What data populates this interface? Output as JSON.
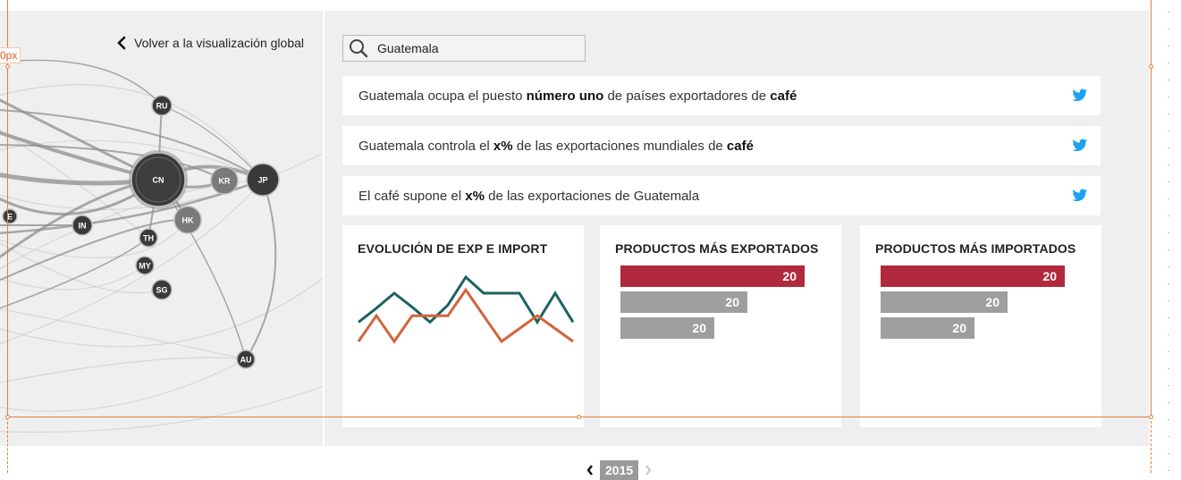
{
  "nav": {
    "back_label": "Volver a la visualización global"
  },
  "network": {
    "nodes": [
      {
        "code": "RU"
      },
      {
        "code": "CN"
      },
      {
        "code": "KR"
      },
      {
        "code": "JP"
      },
      {
        "code": "HK"
      },
      {
        "code": "IN"
      },
      {
        "code": "TH"
      },
      {
        "code": "MY"
      },
      {
        "code": "SG"
      },
      {
        "code": "AU"
      },
      {
        "code": "E"
      }
    ]
  },
  "search": {
    "value": "Guatemala"
  },
  "facts": [
    {
      "pre": "Guatemala ocupa el puesto ",
      "bold1": "número uno",
      "mid": " de países exportadores de ",
      "bold2": "café",
      "post": ""
    },
    {
      "pre": "Guatemala controla el ",
      "bold1": "x%",
      "mid": " de las exportaciones mundiales de ",
      "bold2": "café",
      "post": ""
    },
    {
      "pre": "El café supone el ",
      "bold1": "x%",
      "mid": " de las exportaciones de Guatemala",
      "bold2": "",
      "post": ""
    }
  ],
  "cards": {
    "evolution": {
      "title": "EVOLUCIÓN DE EXP E IMPORT"
    },
    "exported": {
      "title": "PRODUCTOS MÁS EXPORTADOS",
      "bars": [
        {
          "value": "20",
          "fraction": 1.0
        },
        {
          "value": "20",
          "fraction": 0.69
        },
        {
          "value": "20",
          "fraction": 0.51
        }
      ]
    },
    "imported": {
      "title": "PRODUCTOS MÁS IMPORTADOS",
      "bars": [
        {
          "value": "20",
          "fraction": 1.0
        },
        {
          "value": "20",
          "fraction": 0.69
        },
        {
          "value": "20",
          "fraction": 0.51
        }
      ]
    }
  },
  "chart_data": {
    "type": "line",
    "title": "EVOLUCIÓN DE EXP E IMPORT",
    "xlabel": "",
    "ylabel": "",
    "x": [
      1,
      2,
      3,
      4,
      5,
      6,
      7,
      8,
      9,
      10,
      11,
      12,
      13
    ],
    "ylim": [
      0,
      10
    ],
    "series": [
      {
        "values": [
          4.8,
          6.1,
          7.5,
          6.2,
          4.8,
          6.4,
          9.0,
          7.5,
          7.5,
          7.5,
          4.8,
          7.5,
          4.8
        ]
      },
      {
        "values": [
          3.0,
          5.4,
          3.0,
          5.4,
          5.4,
          5.4,
          7.8,
          5.4,
          3.0,
          4.2,
          5.4,
          4.2,
          3.0
        ]
      }
    ],
    "colors": [
      "#1b6361",
      "#d2643a"
    ],
    "grid": false
  },
  "colors": {
    "accent": "#b0293c",
    "bar_gray": "#9e9e9e",
    "twitter": "#1da1f2"
  },
  "overlay": {
    "offset_label": "0px"
  },
  "pager": {
    "year": "2015"
  }
}
